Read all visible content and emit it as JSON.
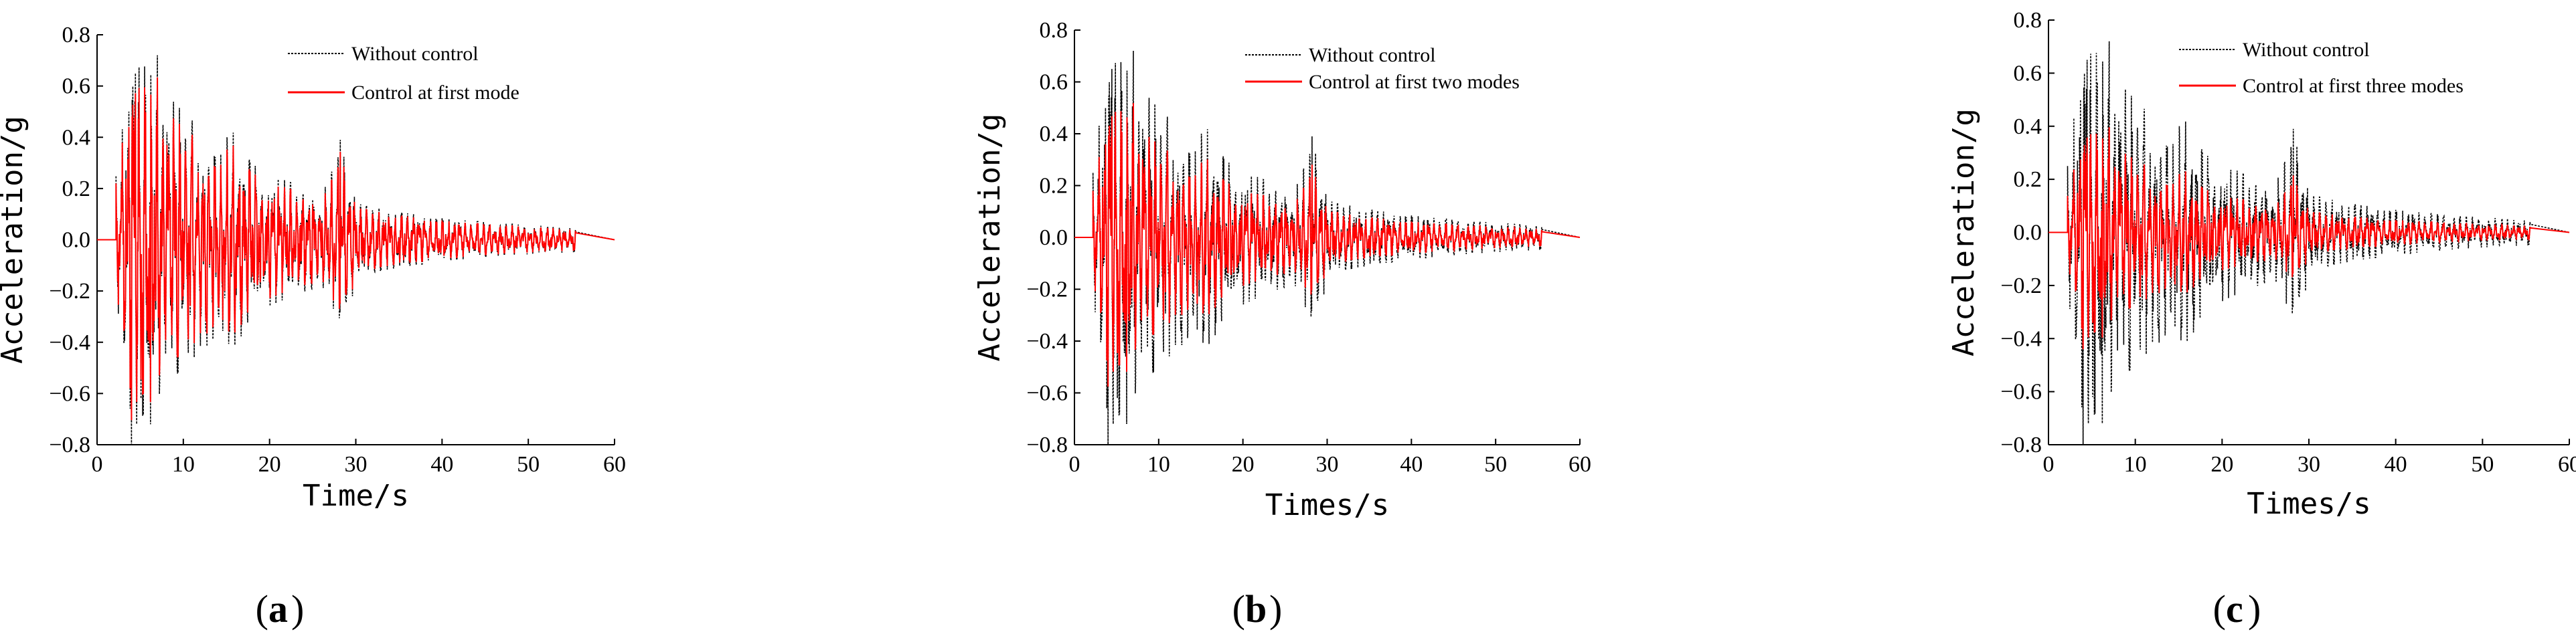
{
  "chart_data": [
    {
      "type": "line",
      "panel_label": "a",
      "xlabel": "Time/s",
      "ylabel": "Acceleration/g",
      "xlim": [
        0,
        60
      ],
      "ylim": [
        -0.8,
        0.8
      ],
      "xticks": [
        "0",
        "10",
        "20",
        "30",
        "40",
        "50",
        "60"
      ],
      "yticks": [
        "−0.8",
        "−0.6",
        "−0.4",
        "−0.2",
        "0.0",
        "0.2",
        "0.4",
        "0.6",
        "0.8"
      ],
      "legend_position": "top-center",
      "series": [
        {
          "name": "Without control",
          "color": "#000000",
          "style": "dotted",
          "signal_end_s": 55.5,
          "peak_positive": 0.72,
          "peak_negative": -0.8
        },
        {
          "name": "Control at first mode",
          "color": "#ff0000",
          "style": "solid",
          "signal_end_s": 55.5,
          "peak_positive": 0.62,
          "peak_negative": -0.7,
          "amplitude_ratio": 0.88
        }
      ]
    },
    {
      "type": "line",
      "panel_label": "b",
      "xlabel": "Times/s",
      "ylabel": "Acceleration/g",
      "xlim": [
        0,
        60
      ],
      "ylim": [
        -0.8,
        0.8
      ],
      "xticks": [
        "0",
        "10",
        "20",
        "30",
        "40",
        "50",
        "60"
      ],
      "yticks": [
        "−0.8",
        "−0.6",
        "−0.4",
        "−0.2",
        "0.0",
        "0.2",
        "0.4",
        "0.6",
        "0.8"
      ],
      "legend_position": "top-center",
      "series": [
        {
          "name": "Without control",
          "color": "#000000",
          "style": "dotted",
          "signal_end_s": 55.5,
          "peak_positive": 0.72,
          "peak_negative": -0.8
        },
        {
          "name": "Control at first two modes",
          "color": "#ff0000",
          "style": "solid",
          "signal_end_s": 55.5,
          "peak_positive": 0.5,
          "peak_negative": -0.6,
          "amplitude_ratio": 0.72
        }
      ]
    },
    {
      "type": "line",
      "panel_label": "c",
      "xlabel": "Times/s",
      "ylabel": "Acceleration/g",
      "xlim": [
        0,
        60
      ],
      "ylim": [
        -0.8,
        0.8
      ],
      "xticks": [
        "0",
        "10",
        "20",
        "30",
        "40",
        "50",
        "60"
      ],
      "yticks": [
        "−0.8",
        "−0.6",
        "−0.4",
        "−0.2",
        "0.0",
        "0.2",
        "0.4",
        "0.6",
        "0.8"
      ],
      "legend_position": "top-center",
      "series": [
        {
          "name": "Without control",
          "color": "#000000",
          "style": "dotted",
          "signal_end_s": 55.5,
          "peak_positive": 0.72,
          "peak_negative": -0.8
        },
        {
          "name": "Control at first three modes",
          "color": "#ff0000",
          "style": "solid",
          "signal_end_s": 55.5,
          "peak_positive": 0.4,
          "peak_negative": -0.48,
          "amplitude_ratio": 0.55
        }
      ]
    }
  ]
}
